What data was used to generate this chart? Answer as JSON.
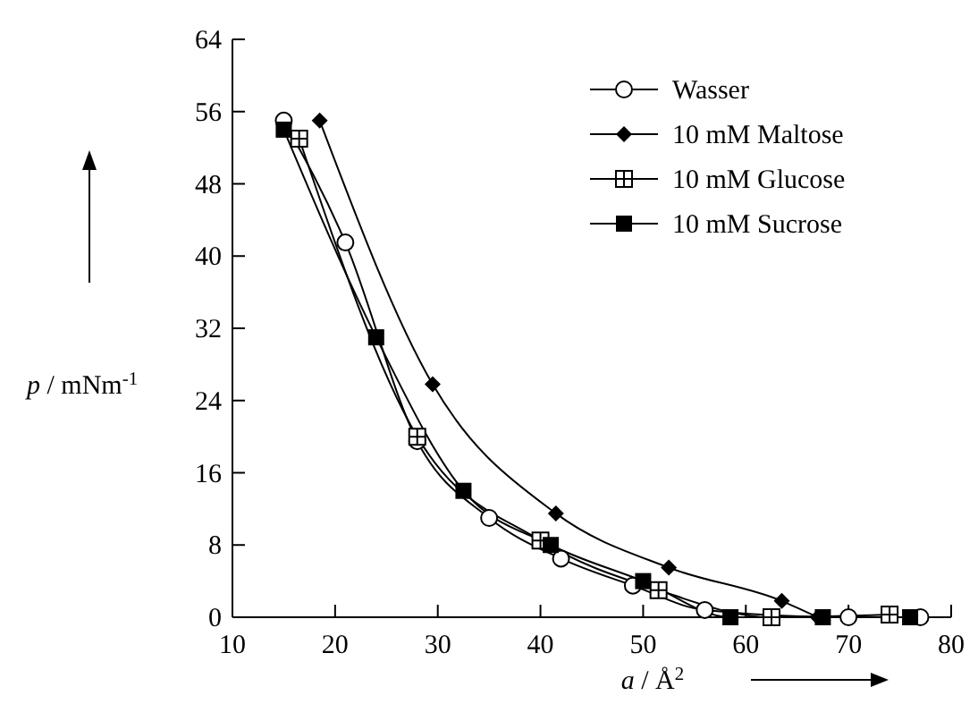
{
  "chart_data": {
    "type": "line",
    "xlabel": "a / Å$^{2}$",
    "ylabel": "p / mNm$^{-1}$",
    "xlim": [
      10,
      80
    ],
    "ylim": [
      0,
      64
    ],
    "xticks": [
      10,
      20,
      30,
      40,
      50,
      60,
      70,
      80
    ],
    "yticks": [
      0,
      8,
      16,
      24,
      32,
      40,
      48,
      56,
      64
    ],
    "grid": false,
    "legend": "top right",
    "series": [
      {
        "name": "Wasser",
        "color": "#000000",
        "marker": "circle",
        "x": [
          15,
          21,
          28,
          35,
          42,
          49,
          56,
          70,
          77
        ],
        "values": [
          55,
          41.5,
          19.5,
          11,
          6.5,
          3.5,
          0.8,
          0,
          0
        ]
      },
      {
        "name": "10 mM Maltose",
        "color": "#000000",
        "marker": "diamond",
        "x": [
          18.5,
          29.5,
          41.5,
          52.5,
          63.5,
          67
        ],
        "values": [
          55,
          25.8,
          11.5,
          5.5,
          1.8,
          0
        ]
      },
      {
        "name": "10 mM Glucose",
        "color": "#000000",
        "marker": "cross",
        "x": [
          16.5,
          28,
          40,
          51.5,
          62.5,
          74
        ],
        "values": [
          53,
          20,
          8.5,
          3,
          0,
          0.3
        ]
      },
      {
        "name": "10 mM Sucrose",
        "color": "#000000",
        "marker": "square",
        "x": [
          15,
          24,
          32.5,
          41,
          50,
          58.5,
          67.5,
          76
        ],
        "values": [
          54,
          31,
          14,
          8,
          4,
          0,
          0,
          0
        ]
      }
    ]
  }
}
